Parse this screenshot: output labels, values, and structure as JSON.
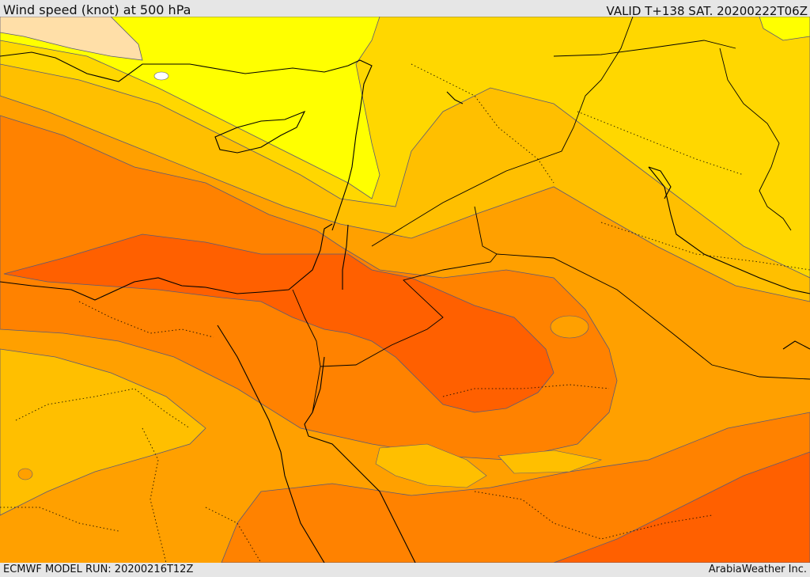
{
  "header": {
    "title": "Wind speed (knot) at 500 hPa",
    "valid": "VALID T+138 SAT. 20200222T06Z"
  },
  "footer": {
    "model_run": "ECMWF MODEL RUN: 20200216T12Z",
    "credit": "ArabiaWeather Inc."
  },
  "map": {
    "parameter": "wind speed at 500 hPa",
    "units": "knot",
    "colors": {
      "very_low": "#ffdfa8",
      "low": "#ffff00",
      "low_mid": "#ffd700",
      "mid": "#ffbf00",
      "mid_high": "#ffa000",
      "high": "#ff8200",
      "very_high": "#ff6000",
      "contour": "#5a5a78",
      "coastline": "#000000"
    }
  }
}
